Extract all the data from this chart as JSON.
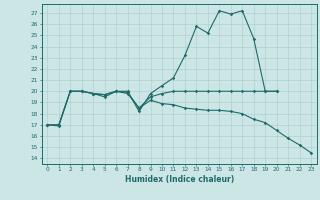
{
  "xlabel": "Humidex (Indice chaleur)",
  "xlim": [
    -0.5,
    23.5
  ],
  "ylim": [
    13.5,
    27.8
  ],
  "yticks": [
    14,
    15,
    16,
    17,
    18,
    19,
    20,
    21,
    22,
    23,
    24,
    25,
    26,
    27
  ],
  "xticks": [
    0,
    1,
    2,
    3,
    4,
    5,
    6,
    7,
    8,
    9,
    10,
    11,
    12,
    13,
    14,
    15,
    16,
    17,
    18,
    19,
    20,
    21,
    22,
    23
  ],
  "bg_color": "#cce5e5",
  "line_color": "#1f6b6b",
  "grid_color": "#aacccc",
  "line1_x": [
    0,
    1,
    2,
    3,
    4,
    5,
    6,
    7,
    8,
    9,
    10,
    11,
    12,
    13,
    14,
    15,
    16,
    17,
    18,
    19,
    20
  ],
  "line1_y": [
    17.0,
    17.0,
    20.0,
    20.0,
    19.8,
    19.7,
    20.0,
    20.0,
    18.2,
    19.8,
    20.5,
    21.2,
    23.2,
    25.8,
    25.2,
    27.2,
    26.9,
    27.2,
    24.7,
    20.0,
    20.0
  ],
  "line2_x": [
    0,
    1,
    2,
    3,
    4,
    5,
    6,
    7,
    8,
    9,
    10,
    11,
    12,
    13,
    14,
    15,
    16,
    17,
    18,
    19,
    20,
    21,
    22,
    23
  ],
  "line2_y": [
    17.0,
    16.9,
    20.0,
    20.0,
    19.8,
    19.5,
    20.0,
    19.8,
    18.5,
    19.2,
    18.9,
    18.8,
    18.5,
    18.4,
    18.3,
    18.3,
    18.2,
    18.0,
    17.5,
    17.2,
    16.5,
    15.8,
    15.2,
    14.5
  ],
  "line3_x": [
    0,
    1,
    2,
    3,
    4,
    5,
    6,
    7,
    8,
    9,
    10,
    11,
    12,
    13,
    14,
    15,
    16,
    17,
    18,
    19,
    20
  ],
  "line3_y": [
    17.0,
    17.0,
    20.0,
    20.0,
    19.8,
    19.7,
    20.0,
    19.9,
    18.5,
    19.5,
    19.8,
    20.0,
    20.0,
    20.0,
    20.0,
    20.0,
    20.0,
    20.0,
    20.0,
    20.0,
    20.0
  ]
}
